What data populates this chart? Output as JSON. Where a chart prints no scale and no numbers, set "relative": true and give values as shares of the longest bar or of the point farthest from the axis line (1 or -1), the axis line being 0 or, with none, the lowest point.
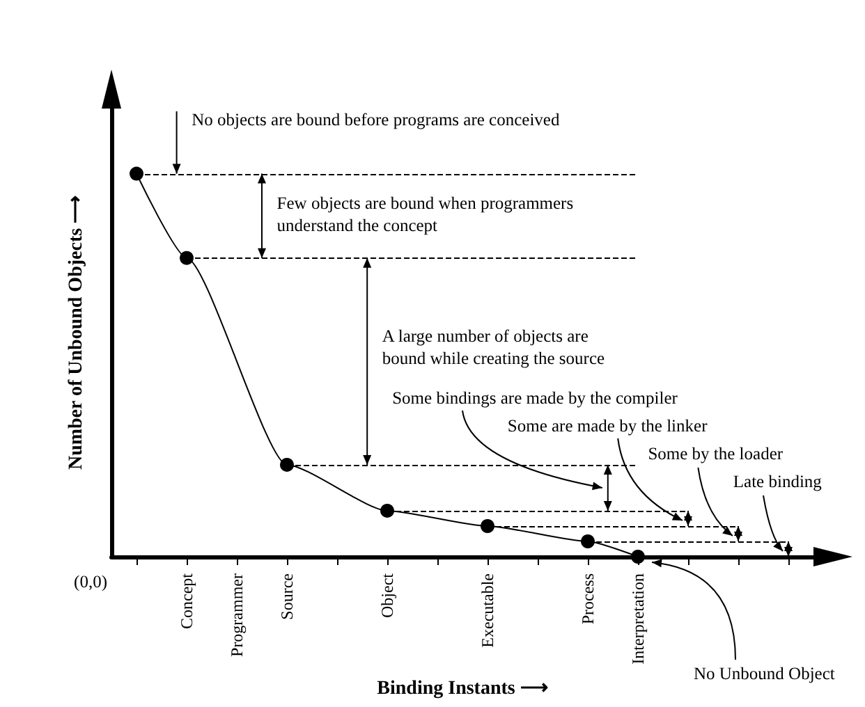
{
  "chart_data": {
    "type": "line",
    "relative": true,
    "marker": "circle",
    "xlabel": "Binding Instants ⟶",
    "ylabel": "Number of Unbound Objects ⟶",
    "categories": [
      null,
      "Concept",
      "Programmer",
      "Source",
      null,
      "Object",
      null,
      "Executable",
      null,
      "Process",
      "Interpretation",
      null,
      null,
      null
    ],
    "series": [
      {
        "color": "#000000",
        "values": [
          1,
          0.78,
          null,
          0.24,
          null,
          0.12,
          null,
          0.08,
          null,
          0.04,
          0,
          null,
          null,
          null
        ]
      }
    ],
    "ref_lines": [
      {
        "axis": "y",
        "value": 1,
        "line_style": "dashed"
      },
      {
        "axis": "y",
        "value": 0.78,
        "line_style": "dashed"
      },
      {
        "axis": "y",
        "value": 0.24,
        "line_style": "dashed"
      },
      {
        "axis": "y",
        "value": 0.12,
        "line_style": "dashed"
      },
      {
        "axis": "y",
        "value": 0.08,
        "line_style": "dashed"
      },
      {
        "axis": "y",
        "value": 0.04,
        "line_style": "dashed"
      }
    ],
    "annotations": [
      "No objects are bound before programs are conceived",
      "Few objects are bound when programmers\nunderstand the concept",
      "A large number of objects are\nbound while creating the source",
      "Some bindings are made by the compiler",
      "Some are made by the linker",
      "Some by the loader",
      "Late binding",
      "No Unbound Object",
      "(0,0)"
    ]
  }
}
